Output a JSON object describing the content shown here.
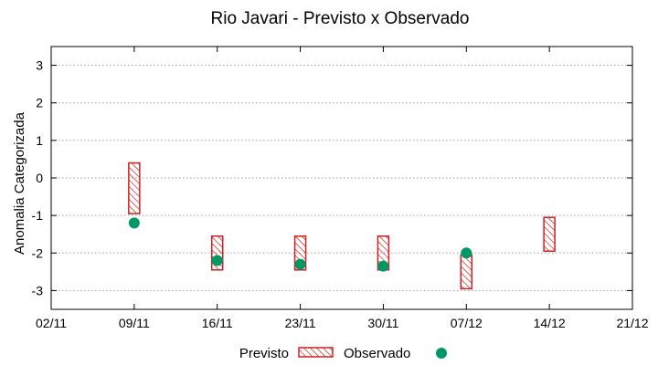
{
  "chart_data": {
    "type": "floating-bar-with-scatter",
    "title": "Rio Javari - Previsto x Observado",
    "xlabel": "",
    "ylabel": "Anomalia Categorizada",
    "ylim": [
      -3.5,
      3.5
    ],
    "yticks": [
      -3,
      -2,
      -1,
      0,
      1,
      2,
      3
    ],
    "xticks": [
      "02/11",
      "09/11",
      "16/11",
      "23/11",
      "30/11",
      "07/12",
      "14/12",
      "21/12"
    ],
    "grid": true,
    "legend_position": "bottom-center",
    "series": [
      {
        "name": "Previsto",
        "kind": "range-bar",
        "color": "#cc2222",
        "points": [
          {
            "x": 1.0,
            "low": -0.95,
            "high": 0.4
          },
          {
            "x": 2.0,
            "low": -2.45,
            "high": -1.55
          },
          {
            "x": 3.0,
            "low": -2.45,
            "high": -1.55
          },
          {
            "x": 4.0,
            "low": -2.45,
            "high": -1.55
          },
          {
            "x": 5.0,
            "low": -2.95,
            "high": -2.05
          },
          {
            "x": 6.0,
            "low": -1.95,
            "high": -1.05
          }
        ]
      },
      {
        "name": "Observado",
        "kind": "scatter",
        "color": "#009966",
        "points": [
          {
            "x": 1.0,
            "y": -1.2
          },
          {
            "x": 2.0,
            "y": -2.2
          },
          {
            "x": 3.0,
            "y": -2.3
          },
          {
            "x": 4.0,
            "y": -2.35
          },
          {
            "x": 5.0,
            "y": -2.0
          }
        ]
      }
    ]
  }
}
